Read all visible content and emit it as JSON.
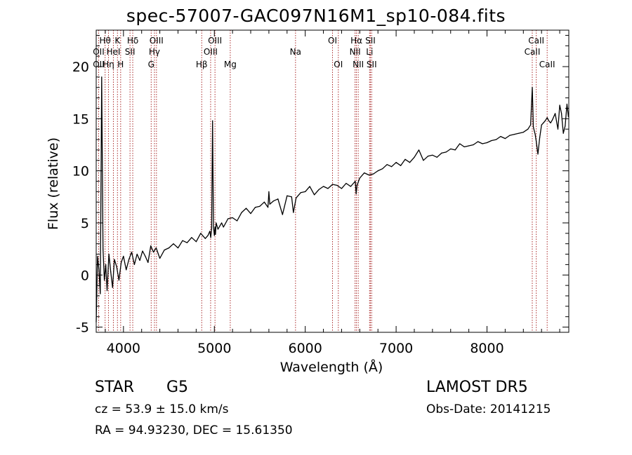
{
  "chart_data": {
    "type": "line",
    "title": "spec-57007-GAC097N16M1_sp10-084.fits",
    "xlabel": "Wavelength (Å)",
    "ylabel": "Flux (relative)",
    "xlim": [
      3700,
      8900
    ],
    "ylim": [
      -5.5,
      23.5
    ],
    "xticks": [
      4000,
      5000,
      6000,
      7000,
      8000
    ],
    "yticks": [
      -5,
      0,
      5,
      10,
      15,
      20
    ],
    "grid": false,
    "series": [
      {
        "x": [
          3700,
          3715,
          3730,
          3745,
          3760,
          3775,
          3790,
          3805,
          3820,
          3840,
          3860,
          3880,
          3900,
          3925,
          3950,
          3975,
          4000,
          4030,
          4060,
          4090,
          4120,
          4150,
          4180,
          4210,
          4240,
          4270,
          4300,
          4330,
          4360,
          4400,
          4450,
          4500,
          4550,
          4600,
          4650,
          4700,
          4750,
          4800,
          4850,
          4900,
          4930,
          4950,
          4960,
          4970,
          4980,
          4990,
          5000,
          5007,
          5012,
          5020,
          5040,
          5080,
          5100,
          5150,
          5200,
          5250,
          5300,
          5350,
          5400,
          5450,
          5500,
          5550,
          5590,
          5600,
          5610,
          5650,
          5700,
          5750,
          5800,
          5850,
          5870,
          5900,
          5950,
          6000,
          6050,
          6100,
          6150,
          6200,
          6250,
          6300,
          6350,
          6400,
          6450,
          6500,
          6550,
          6560,
          6570,
          6600,
          6650,
          6700,
          6750,
          6800,
          6850,
          6900,
          6950,
          7000,
          7050,
          7100,
          7150,
          7200,
          7250,
          7300,
          7350,
          7400,
          7450,
          7500,
          7550,
          7600,
          7650,
          7700,
          7750,
          7800,
          7850,
          7900,
          7950,
          8000,
          8050,
          8100,
          8150,
          8200,
          8250,
          8300,
          8350,
          8400,
          8450,
          8480,
          8498,
          8510,
          8530,
          8542,
          8560,
          8580,
          8600,
          8620,
          8640,
          8662,
          8680,
          8700,
          8720,
          8750,
          8780,
          8800,
          8820,
          8840,
          8860,
          8880,
          8895
        ],
        "y": [
          -4.5,
          1.8,
          0.5,
          -1.8,
          19.0,
          2.5,
          -0.5,
          1.0,
          -1.5,
          2.0,
          0.3,
          -1.2,
          1.5,
          0.8,
          -0.5,
          1.2,
          1.8,
          0.5,
          1.5,
          2.2,
          1.0,
          2.0,
          1.4,
          2.3,
          1.8,
          1.2,
          2.8,
          2.2,
          2.6,
          1.6,
          2.4,
          2.6,
          3.0,
          2.6,
          3.3,
          3.1,
          3.6,
          3.2,
          4.0,
          3.5,
          3.8,
          4.2,
          3.6,
          4.5,
          14.8,
          4.6,
          3.8,
          4.6,
          3.9,
          5.0,
          4.4,
          5.0,
          4.6,
          5.4,
          5.5,
          5.2,
          6.0,
          6.4,
          5.9,
          6.5,
          6.6,
          7.0,
          6.5,
          8.0,
          6.8,
          7.1,
          7.3,
          5.8,
          7.6,
          7.5,
          6.0,
          7.4,
          7.9,
          8.0,
          8.5,
          7.7,
          8.2,
          8.5,
          8.3,
          8.7,
          8.6,
          8.3,
          8.8,
          8.5,
          9.0,
          7.8,
          8.6,
          9.3,
          9.8,
          9.6,
          9.7,
          10.0,
          10.2,
          10.6,
          10.4,
          10.8,
          10.5,
          11.1,
          10.8,
          11.3,
          12.0,
          11.0,
          11.4,
          11.5,
          11.3,
          11.7,
          11.8,
          12.1,
          12.0,
          12.6,
          12.3,
          12.4,
          12.5,
          12.8,
          12.6,
          12.7,
          12.9,
          13.0,
          13.3,
          13.1,
          13.4,
          13.5,
          13.6,
          13.7,
          14.0,
          14.4,
          18.0,
          14.2,
          13.5,
          12.8,
          11.6,
          13.2,
          14.4,
          14.6,
          14.8,
          15.1,
          14.8,
          14.6,
          14.9,
          15.5,
          14.0,
          16.3,
          15.5,
          13.6,
          14.3,
          16.4,
          15.2
        ]
      }
    ],
    "lines": [
      {
        "label": "Hθ",
        "x": 3798,
        "row": 1
      },
      {
        "label": "OII",
        "x": 3727,
        "row": 2
      },
      {
        "label": "OII",
        "x": 3727,
        "row": 3
      },
      {
        "label": "Hη",
        "x": 3835,
        "row": 3
      },
      {
        "label": "HeI",
        "x": 3889,
        "row": 2
      },
      {
        "label": "K",
        "x": 3934,
        "row": 1
      },
      {
        "label": "H",
        "x": 3969,
        "row": 3
      },
      {
        "label": "Hδ",
        "x": 4102,
        "row": 1
      },
      {
        "label": "SII",
        "x": 4072,
        "row": 2
      },
      {
        "label": "OIII",
        "x": 4363,
        "row": 1
      },
      {
        "label": "Hγ",
        "x": 4341,
        "row": 2
      },
      {
        "label": "G",
        "x": 4305,
        "row": 3
      },
      {
        "label": "Hβ",
        "x": 4861,
        "row": 3
      },
      {
        "label": "OIII",
        "x": 5007,
        "row": 1
      },
      {
        "label": "OIII",
        "x": 4959,
        "row": 2
      },
      {
        "label": "Mg",
        "x": 5175,
        "row": 3
      },
      {
        "label": "Na",
        "x": 5893,
        "row": 2
      },
      {
        "label": "OI",
        "x": 6300,
        "row": 1
      },
      {
        "label": "OI",
        "x": 6364,
        "row": 3
      },
      {
        "label": "Hα",
        "x": 6563,
        "row": 1
      },
      {
        "label": "NII",
        "x": 6548,
        "row": 2
      },
      {
        "label": "NII",
        "x": 6583,
        "row": 3
      },
      {
        "label": "SII",
        "x": 6717,
        "row": 1
      },
      {
        "label": "Li",
        "x": 6708,
        "row": 2
      },
      {
        "label": "SII",
        "x": 6731,
        "row": 3
      },
      {
        "label": "CaII",
        "x": 8542,
        "row": 1
      },
      {
        "label": "CaII",
        "x": 8498,
        "row": 2
      },
      {
        "label": "CaII",
        "x": 8662,
        "row": 3
      }
    ]
  },
  "info": {
    "class_label": "STAR",
    "subclass": "G5",
    "survey": "LAMOST DR5",
    "cz": "cz = 53.9 ± 15.0 km/s",
    "obs_date": "Obs-Date: 20141215",
    "coords": "RA =  94.93230, DEC =  15.61350"
  },
  "colors": {
    "spectrum": "#000000",
    "line_marker": "#aa2a2a",
    "axes": "#000000"
  }
}
